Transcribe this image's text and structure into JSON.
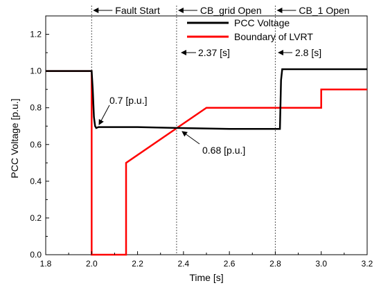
{
  "chart_data": {
    "type": "line",
    "xlabel": "Time [s]",
    "ylabel": "PCC Voltage [p.u.]",
    "xlim": [
      1.8,
      3.2
    ],
    "ylim": [
      0.0,
      1.3
    ],
    "x_ticks": [
      1.8,
      2.0,
      2.2,
      2.4,
      2.6,
      2.8,
      3.0,
      3.2
    ],
    "x_tick_labels": [
      "1.8",
      "2.0",
      "2.2",
      "2.4",
      "2.6",
      "2.8",
      "3.0",
      "3.2"
    ],
    "y_ticks": [
      0.0,
      0.2,
      0.4,
      0.6,
      0.8,
      1.0,
      1.2
    ],
    "y_tick_labels": [
      "0.0",
      "0.2",
      "0.4",
      "0.6",
      "0.8",
      "1.0",
      "1.2"
    ],
    "grid": false,
    "legend_position": "top-right",
    "series": [
      {
        "name": "PCC Voltage",
        "color": "#000000",
        "x": [
          1.8,
          2.0,
          2.005,
          2.01,
          2.015,
          2.02,
          2.03,
          2.05,
          2.2,
          2.37,
          2.6,
          2.8,
          2.82,
          2.825,
          2.83,
          3.2
        ],
        "y": [
          1.0,
          1.0,
          0.9,
          0.75,
          0.7,
          0.69,
          0.695,
          0.695,
          0.695,
          0.69,
          0.685,
          0.685,
          0.685,
          0.95,
          1.01,
          1.01
        ]
      },
      {
        "name": "Boundary of LVRT",
        "color": "#ff0000",
        "x": [
          1.8,
          2.0,
          2.0,
          2.15,
          2.15,
          2.5,
          3.0,
          3.0,
          3.2
        ],
        "y": [
          1.0,
          1.0,
          0.0,
          0.0,
          0.5,
          0.8,
          0.8,
          0.9,
          0.9
        ]
      }
    ],
    "vlines": [
      {
        "x": 2.0,
        "label": "Fault Start"
      },
      {
        "x": 2.37,
        "label": "CB_grid Open"
      },
      {
        "x": 2.8,
        "label": "CB_1 Open"
      }
    ],
    "annotations": [
      {
        "text": "2.37 [s]"
      },
      {
        "text": "2.8 [s]"
      },
      {
        "text": "0.7 [p.u.]"
      },
      {
        "text": "0.68 [p.u.]"
      }
    ]
  }
}
